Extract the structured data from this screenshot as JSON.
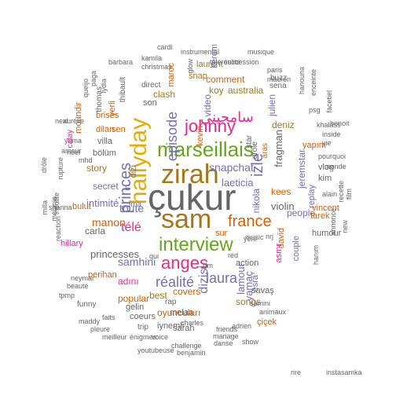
{
  "palette": {
    "green": "#1b9e77",
    "orange": "#d95f02",
    "purple": "#7570b3",
    "magenta": "#e7298a",
    "lime": "#66a61e",
    "gold": "#e6ab02",
    "brown": "#a6761d",
    "gray": "#666666"
  },
  "words": [
    {
      "text": "çukur",
      "color": "#666666"
    },
    {
      "text": "zirah",
      "color": "#a6761d"
    },
    {
      "text": "sam",
      "color": "#a6761d"
    },
    {
      "text": "hallyday",
      "color": "#e6ab02"
    },
    {
      "text": "marseillais",
      "color": "#66a61e"
    },
    {
      "text": "interview",
      "color": "#66a61e"
    },
    {
      "text": "johnny",
      "color": "#e7298a"
    },
    {
      "text": "anges",
      "color": "#e7298a"
    },
    {
      "text": "france",
      "color": "#d95f02"
    },
    {
      "text": "izle",
      "color": "#7570b3"
    },
    {
      "text": "princes",
      "color": "#7570b3"
    },
    {
      "text": "episode",
      "color": "#7570b3"
    },
    {
      "text": "سامحيني",
      "color": "#e7298a"
    },
    {
      "text": "réalité",
      "color": "#7570b3"
    },
    {
      "text": "laura",
      "color": "#7570b3"
    },
    {
      "text": "télé",
      "color": "#e7298a"
    },
    {
      "text": "snapchat",
      "color": "#7570b3"
    },
    {
      "text": "laeticia",
      "color": "#7570b3"
    },
    {
      "text": "princesses",
      "color": "#666666"
    },
    {
      "text": "toute",
      "color": "#7570b3"
    },
    {
      "text": "manon",
      "color": "#d95f02"
    },
    {
      "text": "intimité",
      "color": "#7570b3"
    },
    {
      "text": "samhini",
      "color": "#7570b3"
    },
    {
      "text": "dizisi",
      "color": "#7570b3"
    },
    {
      "text": "lamour",
      "color": "#7570b3"
    },
    {
      "text": "violin",
      "color": "#666666"
    },
    {
      "text": "fragman",
      "color": "#666666"
    },
    {
      "text": "clash",
      "color": "#a6761d"
    },
    {
      "text": "secret",
      "color": "#7570b3"
    },
    {
      "text": "story",
      "color": "#a6761d"
    },
    {
      "text": "songs",
      "color": "#a6761d"
    },
    {
      "text": "popular",
      "color": "#d95f02"
    },
    {
      "text": "australia",
      "color": "#a6761d"
    },
    {
      "text": "comment",
      "color": "#d95f02"
    },
    {
      "text": "kees",
      "color": "#d95f02"
    },
    {
      "text": "koy",
      "color": "#a6761d"
    },
    {
      "text": "video",
      "color": "#7570b3"
    },
    {
      "text": "kevin",
      "color": "#d95f02"
    },
    {
      "text": "nikola",
      "color": "#7570b3"
    },
    {
      "text": "yamaç",
      "color": "#7570b3"
    },
    {
      "text": "covers",
      "color": "#d95f02"
    },
    {
      "text": "best",
      "color": "#a6761d"
    },
    {
      "text": "oyuncuları",
      "color": "#d95f02"
    },
    {
      "text": "adını",
      "color": "#e7298a"
    },
    {
      "text": "deniz",
      "color": "#a6761d"
    },
    {
      "text": "jeremstar",
      "color": "#7570b3"
    },
    {
      "text": "people",
      "color": "#7570b3"
    },
    {
      "text": "asmr",
      "color": "#e7298a"
    },
    {
      "text": "julien",
      "color": "#7570b3"
    },
    {
      "text": "sen",
      "color": "#d95f02"
    },
    {
      "text": "bölüm",
      "color": "#666666"
    },
    {
      "text": "carla",
      "color": "#666666"
    },
    {
      "text": "villa",
      "color": "#666666"
    },
    {
      "text": "son",
      "color": "#666666"
    },
    {
      "text": "replay",
      "color": "#7570b3"
    },
    {
      "text": "gelin",
      "color": "#666666"
    },
    {
      "text": "coeurs",
      "color": "#666666"
    },
    {
      "text": "sur",
      "color": "#d95f02"
    },
    {
      "text": "maroc",
      "color": "#d95f02"
    },
    {
      "text": "snap",
      "color": "#a6761d"
    },
    {
      "text": "laurent",
      "color": "#a6761d"
    },
    {
      "text": "kerem",
      "color": "#7570b3"
    },
    {
      "text": "action",
      "color": "#666666"
    },
    {
      "text": "couple",
      "color": "#7570b3"
    },
    {
      "text": "çiçek",
      "color": "#d95f02"
    },
    {
      "text": "esra",
      "color": "#7570b3"
    },
    {
      "text": "yerli",
      "color": "#d95f02"
    },
    {
      "text": "dilan",
      "color": "#d95f02"
    },
    {
      "text": "brisés",
      "color": "#d95f02"
    },
    {
      "text": "moundir",
      "color": "#d95f02"
    },
    {
      "text": "bulut",
      "color": "#d95f02"
    },
    {
      "text": "hillary",
      "color": "#e7298a"
    },
    {
      "text": "perihan",
      "color": "#d95f02"
    },
    {
      "text": "melaa",
      "color": "#666666"
    },
    {
      "text": "sarah",
      "color": "#666666"
    },
    {
      "text": "iynemli",
      "color": "#666666"
    },
    {
      "text": "savaş",
      "color": "#666666"
    },
    {
      "text": "kim",
      "color": "#666666"
    },
    {
      "text": "vlog",
      "color": "#666666"
    },
    {
      "text": "yapım",
      "color": "#d95f02"
    },
    {
      "text": "humour",
      "color": "#666666"
    },
    {
      "text": "tarek",
      "color": "#d95f02"
    },
    {
      "text": "vincent",
      "color": "#d95f02"
    },
    {
      "text": "dizi",
      "color": "#7570b3"
    },
    {
      "text": "iri",
      "color": "#7570b3"
    },
    {
      "text": "lma",
      "color": "#7570b3"
    },
    {
      "text": "rap",
      "color": "#666666"
    },
    {
      "text": "trip",
      "color": "#666666"
    },
    {
      "text": "aras",
      "color": "#d95f02"
    },
    {
      "text": "drôle",
      "color": "#666666"
    },
    {
      "text": "star",
      "color": "#666666"
    },
    {
      "text": "david",
      "color": "#d95f02"
    },
    {
      "text": "sena",
      "color": "#666666"
    },
    {
      "text": "buzz",
      "color": "#666666"
    },
    {
      "text": "thibault",
      "color": "#666666"
    },
    {
      "text": "calay",
      "color": "#e7298a"
    },
    {
      "text": "thomas",
      "color": "#666666"
    },
    {
      "text": "funny",
      "color": "#666666"
    },
    {
      "text": "direct",
      "color": "#666666"
    },
    {
      "text": "paris",
      "color": "#666666"
    },
    {
      "text": "macron",
      "color": "#666666"
    },
    {
      "text": "christmas",
      "color": "#666666"
    },
    {
      "text": "kamila",
      "color": "#666666"
    },
    {
      "text": "glow",
      "color": "#666666"
    },
    {
      "text": "cardi",
      "color": "#666666"
    },
    {
      "text": "instrumental",
      "color": "#666666"
    },
    {
      "text": "musique",
      "color": "#666666"
    },
    {
      "text": "succession",
      "color": "#666666"
    },
    {
      "text": "téléréalité",
      "color": "#666666"
    },
    {
      "text": "barbara",
      "color": "#666666"
    },
    {
      "text": "challenge",
      "color": "#666666"
    },
    {
      "text": "mariage",
      "color": "#666666"
    },
    {
      "text": "danse",
      "color": "#666666"
    },
    {
      "text": "friends",
      "color": "#666666"
    },
    {
      "text": "voice",
      "color": "#666666"
    },
    {
      "text": "youtubeuse",
      "color": "#666666"
    },
    {
      "text": "benjamin",
      "color": "#666666"
    },
    {
      "text": "pleure",
      "color": "#666666"
    },
    {
      "text": "maddy",
      "color": "#666666"
    },
    {
      "text": "meilleur",
      "color": "#666666"
    },
    {
      "text": "énigmes",
      "color": "#666666"
    },
    {
      "text": "show",
      "color": "#666666"
    },
    {
      "text": "adrien",
      "color": "#666666"
    },
    {
      "text": "animaux",
      "color": "#666666"
    },
    {
      "text": "samini",
      "color": "#666666"
    },
    {
      "text": "faits",
      "color": "#666666"
    },
    {
      "text": "charles",
      "color": "#666666"
    },
    {
      "text": "yenı",
      "color": "#666666"
    },
    {
      "text": "nrj",
      "color": "#666666"
    },
    {
      "text": "music",
      "color": "#666666"
    },
    {
      "text": "red",
      "color": "#666666"
    },
    {
      "text": "rfm",
      "color": "#666666"
    },
    {
      "text": "qui",
      "color": "#666666"
    },
    {
      "text": "yie",
      "color": "#666666"
    },
    {
      "text": "inside",
      "color": "#666666"
    },
    {
      "text": "monde",
      "color": "#666666"
    },
    {
      "text": "alain",
      "color": "#666666"
    },
    {
      "text": "recette",
      "color": "#666666"
    },
    {
      "text": "film",
      "color": "#666666"
    },
    {
      "text": "new",
      "color": "#666666"
    },
    {
      "text": "annonce",
      "color": "#666666"
    },
    {
      "text": "hanım",
      "color": "#666666"
    },
    {
      "text": "benoit",
      "color": "#666666"
    },
    {
      "text": "psg",
      "color": "#666666"
    },
    {
      "text": "pourquoi",
      "color": "#666666"
    },
    {
      "text": "khalass",
      "color": "#666666"
    },
    {
      "text": "hanouna",
      "color": "#666666"
    },
    {
      "text": "enceinte",
      "color": "#666666"
    },
    {
      "text": "facetiel",
      "color": "#666666"
    },
    {
      "text": "yuma",
      "color": "#666666"
    },
    {
      "text": "aurélie",
      "color": "#666666"
    },
    {
      "text": "amour",
      "color": "#666666"
    },
    {
      "text": "next",
      "color": "#666666"
    },
    {
      "text": "shanna",
      "color": "#666666"
    },
    {
      "text": "mélanie",
      "color": "#666666"
    },
    {
      "text": "milla",
      "color": "#666666"
    },
    {
      "text": "rupture",
      "color": "#666666"
    },
    {
      "text": "insolite",
      "color": "#666666"
    },
    {
      "text": "neymar",
      "color": "#666666"
    },
    {
      "text": "beauté",
      "color": "#666666"
    },
    {
      "text": "tpmp",
      "color": "#666666"
    },
    {
      "text": "queijo",
      "color": "#666666"
    },
    {
      "text": "paga",
      "color": "#666666"
    },
    {
      "text": "lydia",
      "color": "#666666"
    },
    {
      "text": "noel",
      "color": "#666666"
    },
    {
      "text": "reaction",
      "color": "#666666"
    },
    {
      "text": "mhd",
      "color": "#666666"
    },
    {
      "text": "drôle",
      "color": "#666666"
    },
    {
      "text": "rire",
      "color": "#666666"
    },
    {
      "text": "instasamka",
      "color": "#666666"
    }
  ]
}
